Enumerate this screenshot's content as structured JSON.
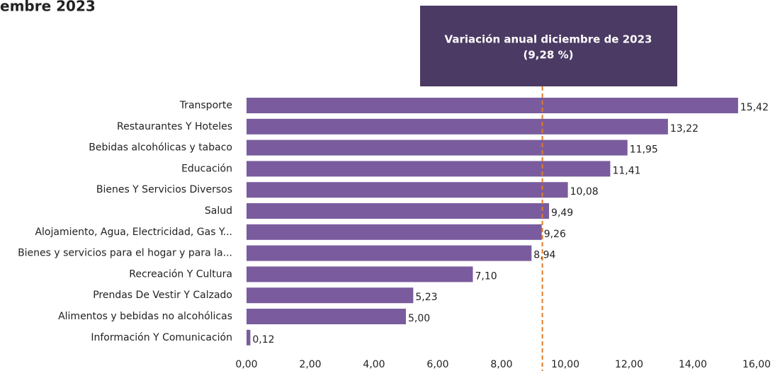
{
  "chart_data": {
    "type": "bar",
    "orientation": "horizontal",
    "title": "embre 2023",
    "categories": [
      "Transporte",
      "Restaurantes Y Hoteles",
      "Bebidas alcohólicas y tabaco",
      "Educación",
      "Bienes Y Servicios Diversos",
      "Salud",
      "Alojamiento, Agua, Electricidad, Gas Y...",
      "Bienes y servicios para el hogar y para la...",
      "Recreación Y Cultura",
      "Prendas De Vestir Y Calzado",
      "Alimentos y bebidas no alcohólicas",
      "Información Y Comunicación"
    ],
    "values": [
      15.42,
      13.22,
      11.95,
      11.41,
      10.08,
      9.49,
      9.26,
      8.94,
      7.1,
      5.23,
      5.0,
      0.12
    ],
    "value_labels": [
      "15,42",
      "13,22",
      "11,95",
      "11,41",
      "10,08",
      "9,49",
      "9,26",
      "8,94",
      "7,10",
      "5,23",
      "5,00",
      "0,12"
    ],
    "color": "#7a5c9e",
    "xlim": [
      0,
      16
    ],
    "xticks": [
      {
        "value": 0,
        "label": "0,00"
      },
      {
        "value": 2,
        "label": "2,00"
      },
      {
        "value": 4,
        "label": "4,00"
      },
      {
        "value": 6,
        "label": "6,00"
      },
      {
        "value": 8,
        "label": "8,00"
      },
      {
        "value": 10,
        "label": "10,00"
      },
      {
        "value": 12,
        "label": "12,00"
      },
      {
        "value": 14,
        "label": "14,00"
      },
      {
        "value": 16,
        "label": "16,00"
      }
    ],
    "reference_line": {
      "value": 9.28,
      "label": "Variación anual diciembre de 2023",
      "value_label": "(9,28 %)",
      "color": "#e07b2a"
    }
  }
}
